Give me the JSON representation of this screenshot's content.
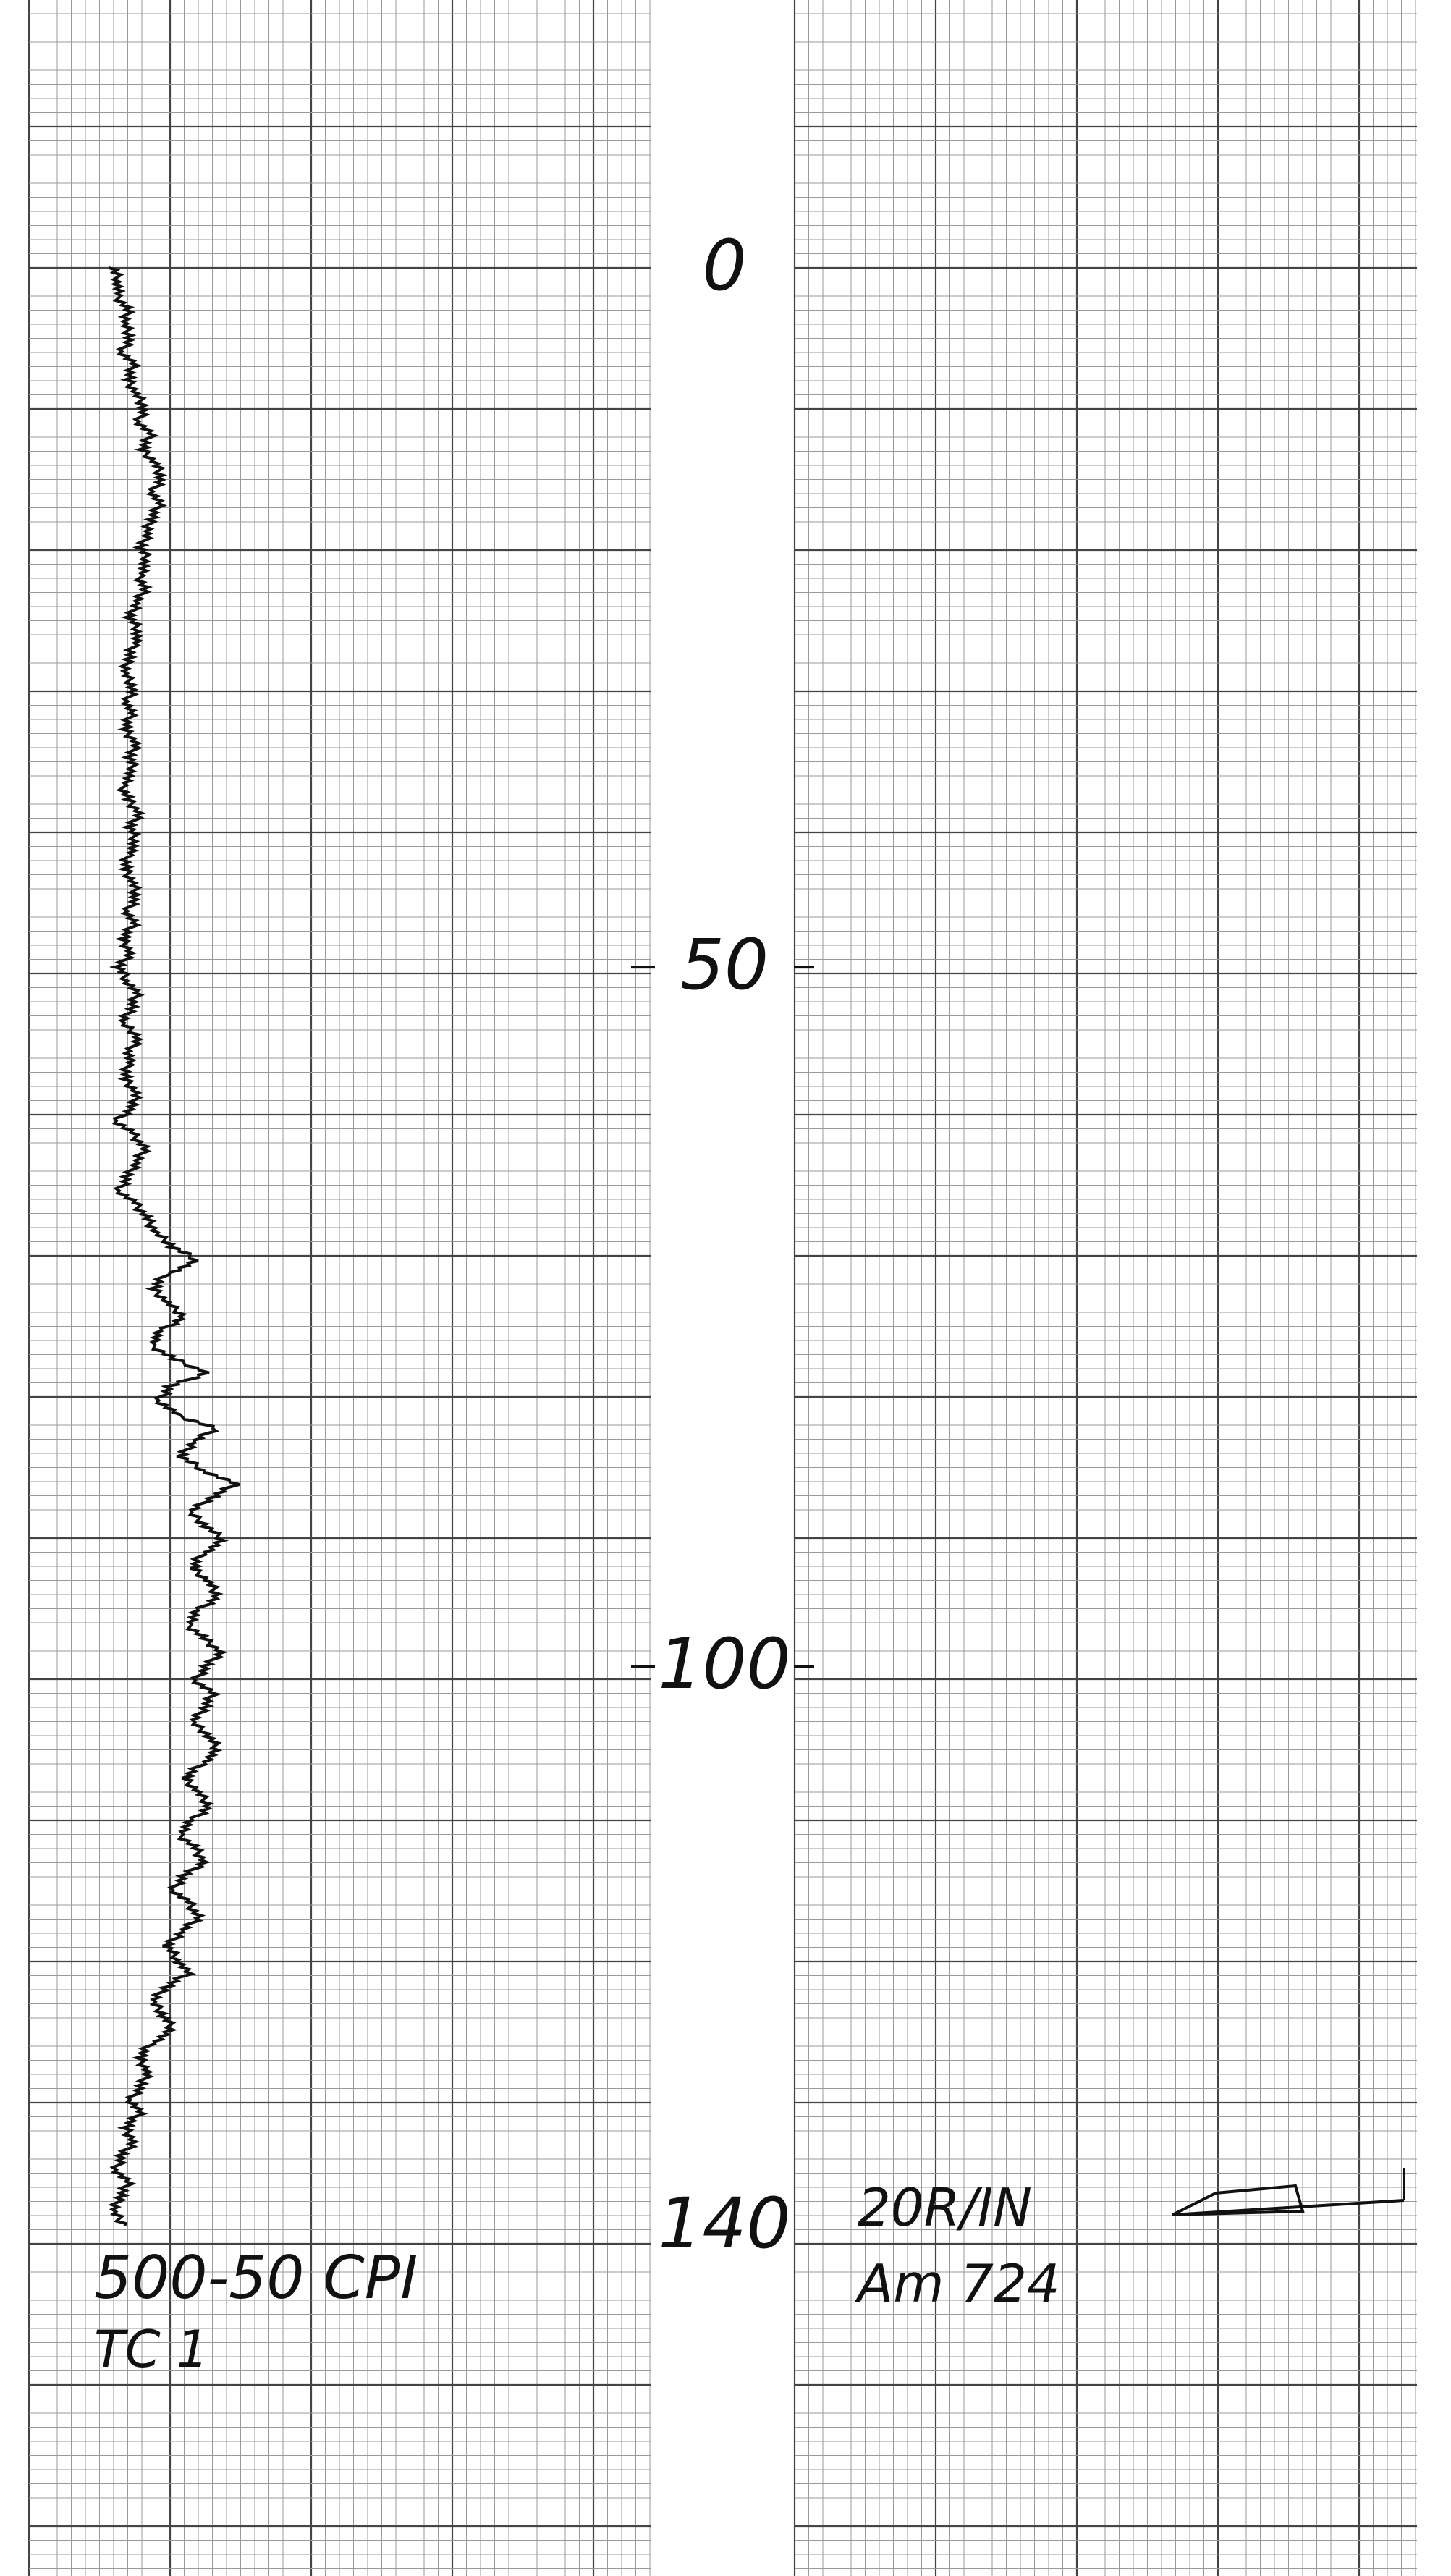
{
  "chart_data": {
    "type": "line",
    "orientation": "vertical strip-chart recording",
    "y_axis_labels": [
      "0",
      "50",
      "100",
      "140"
    ],
    "y_axis_values": [
      0,
      50,
      100,
      140
    ],
    "ylim": [
      0,
      140
    ],
    "annotations": {
      "range": "500-50 CPI",
      "channel": "TC 1",
      "scale": "20R/IN",
      "sample": "Am 724"
    },
    "grid": true,
    "series": [
      {
        "note": "trace deflection in chart divisions (0 = left edge of grid) sampled every 1 unit from 0 to 140",
        "values": [
          6.0,
          6.4,
          6.2,
          7.0,
          6.8,
          7.2,
          6.6,
          7.4,
          7.0,
          7.6,
          8.2,
          7.8,
          8.6,
          8.0,
          9.0,
          9.4,
          8.8,
          9.2,
          8.6,
          8.4,
          8.0,
          8.4,
          7.8,
          8.2,
          7.6,
          7.2,
          7.8,
          7.4,
          7.0,
          6.8,
          7.4,
          7.0,
          7.2,
          6.8,
          7.6,
          7.2,
          7.4,
          6.6,
          7.0,
          7.8,
          7.2,
          7.6,
          7.0,
          6.8,
          7.4,
          7.6,
          7.0,
          7.4,
          6.6,
          7.2,
          6.4,
          7.0,
          7.6,
          7.2,
          6.6,
          7.8,
          7.2,
          7.0,
          6.8,
          7.6,
          7.4,
          6.2,
          7.4,
          8.2,
          7.6,
          7.0,
          6.4,
          7.6,
          8.4,
          9.0,
          10.2,
          12.0,
          9.6,
          8.8,
          9.8,
          11.0,
          9.4,
          8.6,
          10.2,
          12.6,
          10.0,
          9.2,
          10.4,
          13.2,
          11.6,
          10.8,
          12.4,
          14.6,
          12.8,
          11.4,
          12.6,
          13.8,
          12.2,
          11.6,
          12.8,
          13.4,
          12.0,
          11.2,
          12.4,
          13.6,
          12.6,
          11.8,
          13.0,
          12.4,
          11.6,
          12.8,
          13.4,
          12.2,
          11.0,
          12.0,
          12.8,
          11.6,
          10.6,
          11.8,
          12.4,
          11.0,
          10.2,
          11.4,
          12.0,
          10.8,
          9.8,
          10.6,
          11.2,
          9.6,
          8.8,
          9.6,
          10.2,
          8.6,
          7.8,
          8.4,
          8.0,
          7.2,
          7.8,
          6.8,
          7.4,
          6.6,
          6.2,
          7.0,
          6.4,
          6.0,
          6.8
        ]
      }
    ]
  }
}
